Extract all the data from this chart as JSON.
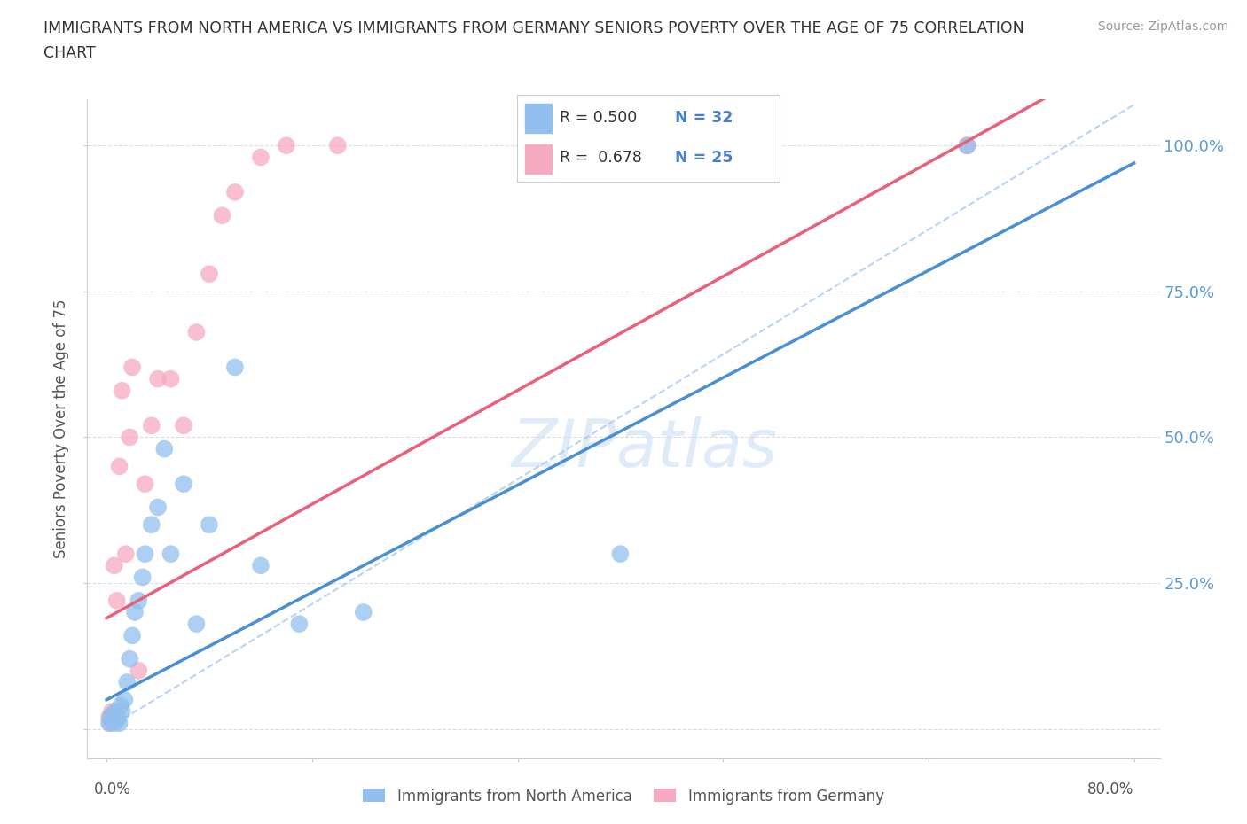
{
  "title_line1": "IMMIGRANTS FROM NORTH AMERICA VS IMMIGRANTS FROM GERMANY SENIORS POVERTY OVER THE AGE OF 75 CORRELATION",
  "title_line2": "CHART",
  "source": "Source: ZipAtlas.com",
  "ylabel": "Seniors Poverty Over the Age of 75",
  "watermark": "ZIPatlas",
  "legend_r1": "R = 0.500",
  "legend_n1": "N = 32",
  "legend_r2": "R = 0.678",
  "legend_n2": "N = 25",
  "color_blue": "#92C0EE",
  "color_pink": "#F5AABF",
  "line_blue": "#4A8FD4",
  "line_pink": "#E8607A",
  "dash_color": "#A8C8F0",
  "legend_text_color": "#4A7FC1",
  "legend_r_color": "#333333",
  "xlim": [
    -1.5,
    82.0
  ],
  "ylim": [
    -5.0,
    108.0
  ],
  "grid_color": "#DDDDDD",
  "axis_color": "#CCCCCC",
  "right_axis_color": "#5B9BD5",
  "bg_color": "#FFFFFF",
  "blue_x": [
    0.2,
    0.3,
    0.4,
    0.5,
    0.6,
    0.7,
    0.8,
    0.9,
    1.0,
    1.1,
    1.2,
    1.4,
    1.6,
    1.8,
    2.0,
    2.2,
    2.5,
    2.8,
    3.0,
    3.5,
    4.0,
    4.5,
    5.0,
    6.0,
    7.0,
    8.0,
    10.0,
    12.0,
    15.0,
    20.0,
    40.0,
    67.0
  ],
  "blue_y": [
    1.0,
    2.0,
    1.5,
    2.5,
    1.0,
    3.0,
    1.5,
    2.0,
    1.0,
    4.0,
    3.0,
    5.0,
    8.0,
    12.0,
    16.0,
    20.0,
    22.0,
    26.0,
    30.0,
    35.0,
    38.0,
    48.0,
    30.0,
    42.0,
    18.0,
    35.0,
    62.0,
    28.0,
    18.0,
    20.0,
    30.0,
    100.0
  ],
  "pink_x": [
    0.2,
    0.3,
    0.4,
    0.5,
    0.6,
    0.8,
    1.0,
    1.2,
    1.5,
    1.8,
    2.0,
    2.5,
    3.0,
    3.5,
    4.0,
    5.0,
    6.0,
    7.0,
    8.0,
    9.0,
    10.0,
    12.0,
    14.0,
    18.0,
    67.0
  ],
  "pink_y": [
    2.0,
    1.0,
    3.0,
    2.0,
    28.0,
    22.0,
    45.0,
    58.0,
    30.0,
    50.0,
    62.0,
    10.0,
    42.0,
    52.0,
    60.0,
    60.0,
    52.0,
    68.0,
    78.0,
    88.0,
    92.0,
    98.0,
    100.0,
    100.0,
    100.0
  ],
  "blue_marker_size": 200,
  "pink_marker_size": 200,
  "blue_line_intercept": 5.0,
  "blue_line_slope": 1.15,
  "pink_line_intercept": 19.0,
  "pink_line_slope": 1.22
}
